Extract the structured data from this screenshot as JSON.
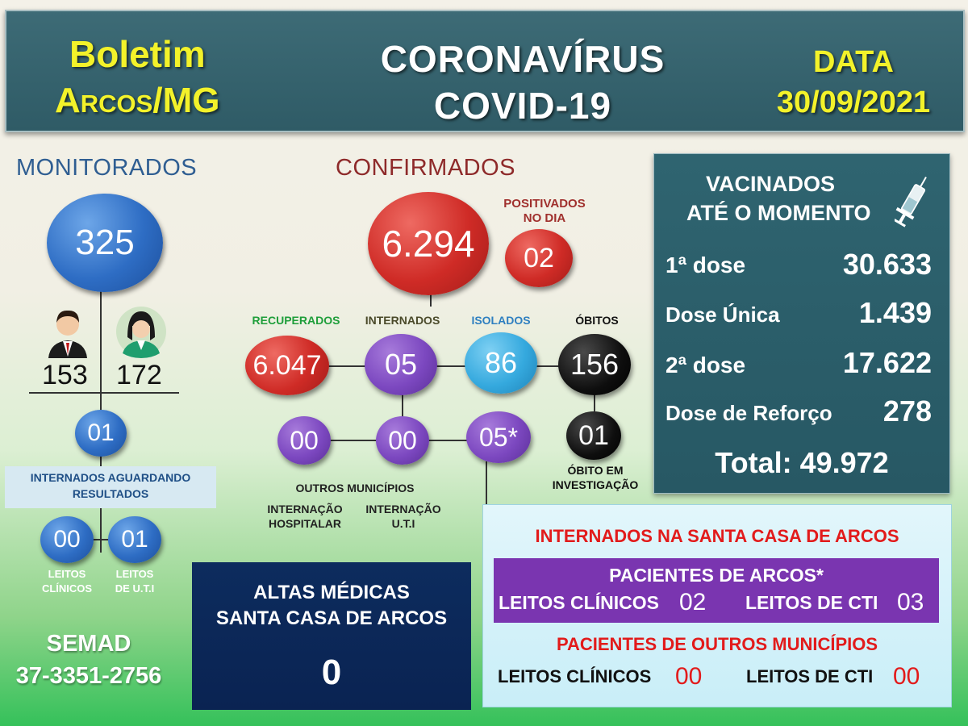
{
  "header": {
    "boletim": "Boletim",
    "city": "Arcos/MG",
    "title_line1": "CORONAVÍRUS",
    "title_line2": "COVID-19",
    "date_label": "DATA",
    "date_value": "30/09/2021"
  },
  "monitorados": {
    "title": "MONITORADOS",
    "total": "325",
    "men": "153",
    "women": "172",
    "aguardando_value": "01",
    "aguardando_label_line1": "INTERNADOS AGUARDANDO",
    "aguardando_label_line2": "RESULTADOS",
    "leitos_clinicos_value": "00",
    "leitos_uti_value": "01",
    "leitos_clinicos_line1": "LEITOS",
    "leitos_clinicos_line2": "CLÍNICOS",
    "leitos_uti_line1": "LEITOS",
    "leitos_uti_line2": "DE  U.T.I"
  },
  "semad": {
    "name": "SEMAD",
    "phone": "37-3351-2756"
  },
  "confirmados": {
    "title": "CONFIRMADOS",
    "total": "6.294",
    "positivados_line1": "POSITIVADOS",
    "positivados_line2": "NO DIA",
    "positivados_value": "02",
    "recuperados_label": "RECUPERADOS",
    "recuperados_value": "6.047",
    "internados_label": "INTERNADOS",
    "internados_value": "05",
    "isolados_label": "ISOLADOS",
    "isolados_value": "86",
    "obitos_label": "ÓBITOS",
    "obitos_value": "156",
    "obito_invest_value": "01",
    "obito_invest_line1": "ÓBITO EM",
    "obito_invest_line2": "INVESTIGAÇÃO",
    "outros_value": "00",
    "hospitalar_value": "00",
    "uti_value": "05*",
    "outros_label": "OUTROS MUNICÍPIOS",
    "hospitalar_line1": "INTERNAÇÃO",
    "hospitalar_line2": "HOSPITALAR",
    "uti_line1": "INTERNAÇÃO",
    "uti_line2": "U.T.I"
  },
  "vacinados": {
    "title_line1": "VACINADOS",
    "title_line2": "ATÉ O MOMENTO",
    "rows": [
      {
        "label": "1ª dose",
        "value": "30.633"
      },
      {
        "label": "Dose Única",
        "value": "1.439"
      },
      {
        "label": "2ª dose",
        "value": "17.622"
      },
      {
        "label": "Dose de Reforço",
        "value": "278"
      }
    ],
    "total": "Total: 49.972"
  },
  "altas": {
    "line1": "ALTAS MÉDICAS",
    "line2": "SANTA CASA DE ARCOS",
    "value": "0"
  },
  "santa_casa": {
    "title": "INTERNADOS NA SANTA CASA DE ARCOS",
    "arcos_title": "PACIENTES DE ARCOS*",
    "arcos_clinicos_label": "LEITOS CLÍNICOS",
    "arcos_clinicos_value": "02",
    "arcos_cti_label": "LEITOS DE CTI",
    "arcos_cti_value": "03",
    "outros_title": "PACIENTES DE OUTROS MUNICÍPIOS",
    "outros_clinicos_label": "LEITOS CLÍNICOS",
    "outros_clinicos_value": "00",
    "outros_cti_label": "LEITOS DE CTI",
    "outros_cti_value": "00"
  },
  "icons": [
    "man-avatar-icon",
    "woman-avatar-icon",
    "syringe-icon"
  ],
  "colors": {
    "header_bg": "#2f5b66",
    "yellow": "#f3f22a",
    "green_label": "#1e9e3a",
    "red_title": "#e21b1b"
  }
}
